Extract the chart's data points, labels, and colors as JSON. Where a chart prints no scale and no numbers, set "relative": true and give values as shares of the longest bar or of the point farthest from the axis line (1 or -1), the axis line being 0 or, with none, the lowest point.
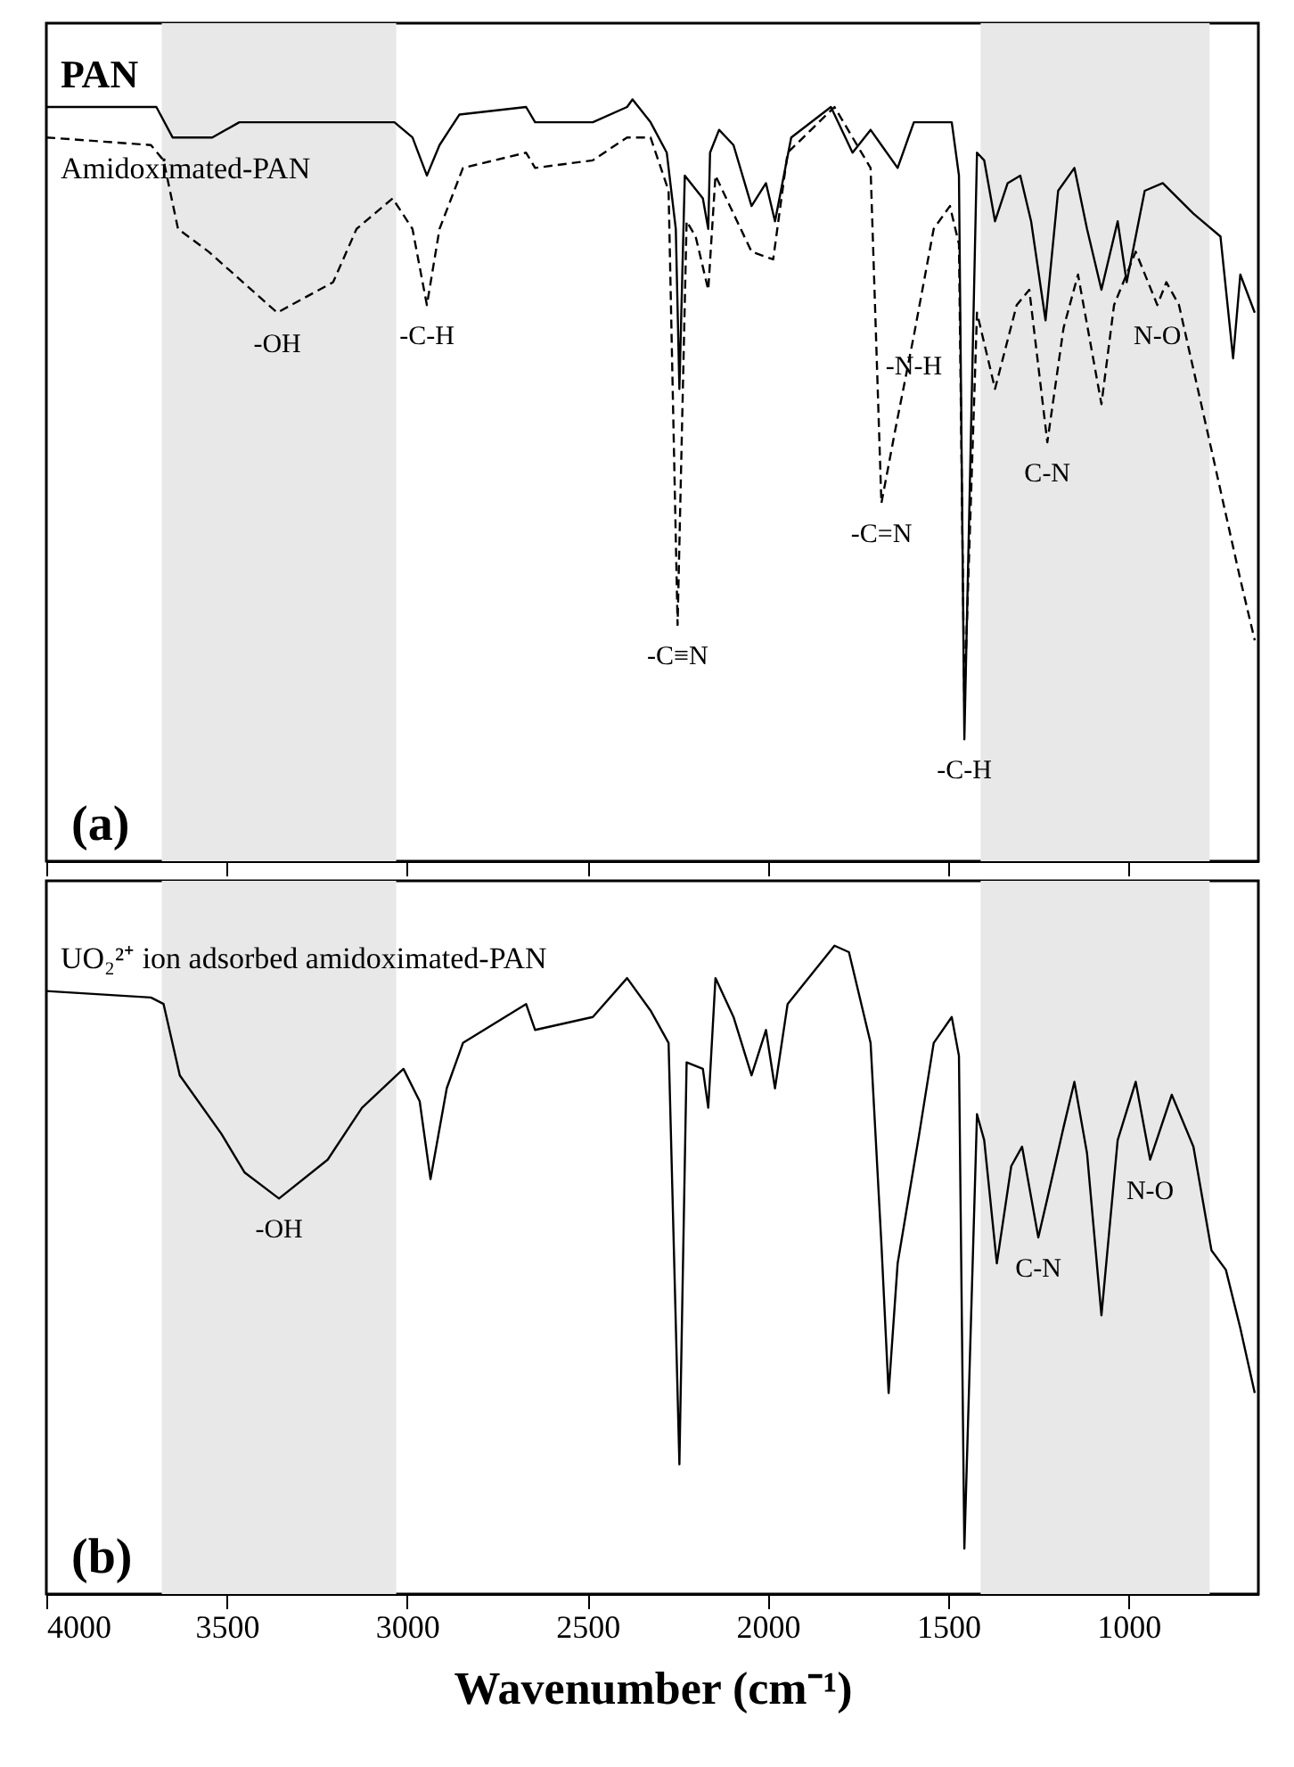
{
  "chart_data": [
    {
      "type": "line",
      "relative": true,
      "tick_labels": false,
      "xlim": [
        4000,
        640
      ],
      "xticks": [
        4000,
        3500,
        3000,
        2500,
        2000,
        1500,
        1000
      ],
      "bands": [
        {
          "axis": "x",
          "from": 3680,
          "to": 3030,
          "color": "#e8e8e8"
        },
        {
          "axis": "x",
          "from": 1410,
          "to": 775,
          "color": "#e8e8e8"
        }
      ],
      "series": [
        {
          "name": "PAN",
          "color": "#000000",
          "line_style": "solid",
          "x": [
            4000,
            3760,
            3695,
            3650,
            3540,
            3465,
            3220,
            3035,
            2985,
            2945,
            2910,
            2855,
            2670,
            2645,
            2485,
            2390,
            2375,
            2325,
            2280,
            2255,
            2245,
            2230,
            2180,
            2165,
            2160,
            2135,
            2095,
            2045,
            2005,
            1980,
            1935,
            1825,
            1765,
            1715,
            1685,
            1640,
            1595,
            1490,
            1470,
            1455,
            1420,
            1400,
            1370,
            1335,
            1300,
            1270,
            1230,
            1195,
            1150,
            1115,
            1075,
            1030,
            1005,
            955,
            905,
            820,
            745,
            710,
            690,
            650
          ],
          "values": [
            0.99,
            0.99,
            0.99,
            0.95,
            0.95,
            0.97,
            0.97,
            0.97,
            0.95,
            0.9,
            0.94,
            0.98,
            0.99,
            0.97,
            0.97,
            0.99,
            1.0,
            0.97,
            0.93,
            0.83,
            0.62,
            0.9,
            0.87,
            0.83,
            0.93,
            0.96,
            0.94,
            0.86,
            0.89,
            0.84,
            0.95,
            0.99,
            0.93,
            0.96,
            0.94,
            0.91,
            0.97,
            0.97,
            0.9,
            0.16,
            0.93,
            0.92,
            0.84,
            0.89,
            0.9,
            0.84,
            0.71,
            0.88,
            0.91,
            0.83,
            0.75,
            0.84,
            0.76,
            0.88,
            0.89,
            0.85,
            0.82,
            0.66,
            0.77,
            0.72
          ]
        },
        {
          "name": "Amidoximated-PAN",
          "color": "#000000",
          "line_style": "dashed",
          "x": [
            4000,
            3710,
            3675,
            3635,
            3550,
            3360,
            3205,
            3140,
            3040,
            2985,
            2945,
            2910,
            2845,
            2670,
            2645,
            2485,
            2390,
            2325,
            2275,
            2250,
            2225,
            2200,
            2165,
            2145,
            2045,
            1985,
            1945,
            1815,
            1765,
            1715,
            1685,
            1645,
            1595,
            1540,
            1495,
            1470,
            1455,
            1420,
            1370,
            1310,
            1275,
            1225,
            1180,
            1140,
            1075,
            1040,
            980,
            920,
            895,
            860,
            770,
            690,
            650
          ],
          "values": [
            0.95,
            0.94,
            0.92,
            0.83,
            0.8,
            0.72,
            0.76,
            0.83,
            0.87,
            0.83,
            0.73,
            0.83,
            0.91,
            0.93,
            0.91,
            0.92,
            0.95,
            0.95,
            0.88,
            0.31,
            0.84,
            0.82,
            0.75,
            0.9,
            0.8,
            0.79,
            0.93,
            0.99,
            0.95,
            0.91,
            0.47,
            0.57,
            0.69,
            0.83,
            0.86,
            0.81,
            0.21,
            0.72,
            0.62,
            0.73,
            0.75,
            0.55,
            0.7,
            0.77,
            0.6,
            0.73,
            0.8,
            0.73,
            0.76,
            0.73,
            0.54,
            0.37,
            0.29
          ]
        }
      ],
      "annotations": [
        {
          "text": "-OH",
          "x": 3360,
          "y": 0.72
        },
        {
          "text": "-C-H",
          "x": 2945,
          "y": 0.73
        },
        {
          "text": "-C≡N",
          "x": 2250,
          "y": 0.31
        },
        {
          "text": "-N-H",
          "x": 1595,
          "y": 0.69
        },
        {
          "text": "-C=N",
          "x": 1685,
          "y": 0.47
        },
        {
          "text": "C-N",
          "x": 1225,
          "y": 0.55
        },
        {
          "text": "N-O",
          "x": 920,
          "y": 0.73
        },
        {
          "text": "-C-H",
          "x": 1455,
          "y": 0.16
        },
        "(a)"
      ]
    },
    {
      "type": "line",
      "relative": true,
      "tick_labels": "x",
      "xlabel": "Wavenumber (cm⁻¹)",
      "xlim": [
        4000,
        640
      ],
      "xticks": [
        4000,
        3500,
        3000,
        2500,
        2000,
        1500,
        1000
      ],
      "bands": [
        {
          "axis": "x",
          "from": 3680,
          "to": 3030,
          "color": "#e8e8e8"
        },
        {
          "axis": "x",
          "from": 1410,
          "to": 775,
          "color": "#e8e8e8"
        }
      ],
      "series": [
        {
          "name": "UO₂²⁺ ion adsorbed amidoximated-PAN",
          "color": "#000000",
          "line_style": "solid",
          "x": [
            4000,
            3710,
            3675,
            3630,
            3515,
            3450,
            3355,
            3220,
            3125,
            3010,
            2965,
            2935,
            2890,
            2845,
            2670,
            2645,
            2485,
            2390,
            2325,
            2275,
            2245,
            2225,
            2180,
            2165,
            2145,
            2095,
            2045,
            2005,
            1980,
            1945,
            1815,
            1775,
            1715,
            1685,
            1665,
            1640,
            1580,
            1540,
            1490,
            1470,
            1455,
            1420,
            1400,
            1365,
            1325,
            1295,
            1250,
            1225,
            1180,
            1150,
            1115,
            1075,
            1030,
            980,
            940,
            880,
            820,
            770,
            730,
            690,
            650
          ],
          "values": [
            0.93,
            0.92,
            0.91,
            0.8,
            0.71,
            0.65,
            0.61,
            0.67,
            0.75,
            0.81,
            0.76,
            0.64,
            0.78,
            0.85,
            0.91,
            0.87,
            0.89,
            0.95,
            0.9,
            0.85,
            0.2,
            0.82,
            0.81,
            0.75,
            0.95,
            0.89,
            0.8,
            0.87,
            0.78,
            0.91,
            1.0,
            0.99,
            0.85,
            0.54,
            0.31,
            0.51,
            0.71,
            0.85,
            0.89,
            0.83,
            0.07,
            0.74,
            0.7,
            0.51,
            0.66,
            0.69,
            0.55,
            0.61,
            0.72,
            0.79,
            0.68,
            0.43,
            0.7,
            0.79,
            0.67,
            0.77,
            0.69,
            0.53,
            0.5,
            0.41,
            0.31
          ]
        }
      ],
      "annotations": [
        {
          "text": "-OH",
          "x": 3355,
          "y": 0.61
        },
        {
          "text": "C-N",
          "x": 1250,
          "y": 0.55
        },
        {
          "text": "N-O",
          "x": 940,
          "y": 0.67
        },
        "(b)"
      ]
    }
  ]
}
